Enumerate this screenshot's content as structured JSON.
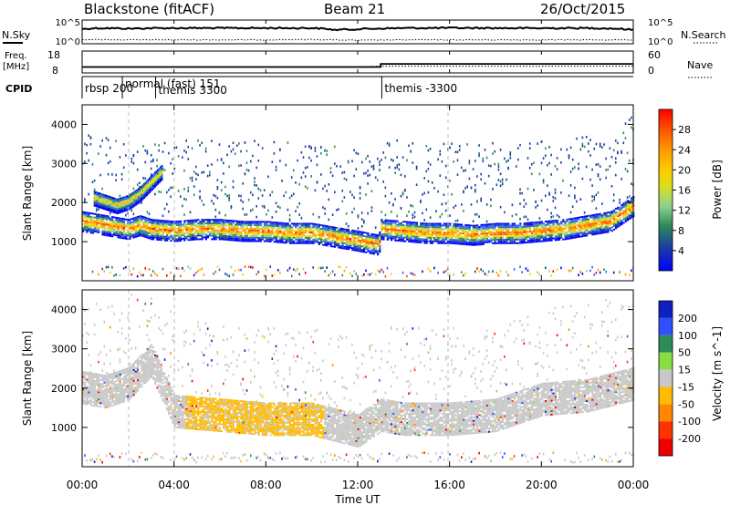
{
  "header": {
    "station": "Blackstone (fitACF)",
    "beam": "Beam 21",
    "date": "26/Oct/2015"
  },
  "labels": {
    "nsky": "N.Sky",
    "nsearch": "N.Search",
    "freq_line1": "Freq.",
    "freq_line2": "[MHz]",
    "nave": "Nave",
    "cpid": "CPID",
    "tick_nsky_top": "10^5",
    "tick_nsky_bottom": "10^0",
    "tick_freq_top": "18",
    "tick_freq_bottom": "8",
    "tick_nave_top": "60",
    "tick_nave_bottom": "0"
  },
  "cpid_segments": [
    {
      "start_h": 0.0,
      "label": "rbsp 200"
    },
    {
      "start_h": 1.75,
      "label": "normal (fast) 151"
    },
    {
      "start_h": 3.2,
      "label": "themis 3300"
    },
    {
      "start_h": 13.05,
      "label": "themis -3300"
    }
  ],
  "chart_data": [
    {
      "type": "line",
      "name": "noise",
      "xlabel": "",
      "ylabel": "",
      "xlim": [
        0,
        24
      ],
      "y_scale": "log",
      "ylim": [
        1,
        100000
      ],
      "series": [
        {
          "name": "N.Sky",
          "style": "solid",
          "x": [
            0,
            0.5,
            1,
            2,
            3,
            4,
            6,
            8,
            10,
            11,
            12,
            14,
            16,
            18,
            20,
            22,
            23,
            24
          ],
          "y": [
            5000,
            9000,
            10000,
            7000,
            9000,
            10000,
            10000,
            10000,
            10000,
            3000,
            5000,
            10000,
            11000,
            10000,
            9000,
            10000,
            8000,
            3000
          ]
        },
        {
          "name": "N.Search",
          "style": "dotted",
          "x": [
            0,
            2,
            4,
            6,
            8,
            10,
            12,
            14,
            16,
            18,
            20,
            22,
            24
          ],
          "y": [
            5,
            4,
            4,
            4,
            4,
            5,
            3,
            4,
            4,
            4,
            4,
            4,
            4
          ]
        }
      ]
    },
    {
      "type": "line",
      "name": "frequency-and-nave",
      "xlim": [
        0,
        24
      ],
      "ylim_left": [
        8,
        18
      ],
      "ylim_right": [
        0,
        60
      ],
      "series": [
        {
          "name": "Freq. [MHz]",
          "style": "solid",
          "axis": "left",
          "x": [
            0,
            13,
            13,
            24
          ],
          "y": [
            10.5,
            10.5,
            12.4,
            12.4
          ]
        },
        {
          "name": "Nave",
          "style": "dotted",
          "axis": "right",
          "x": [
            0,
            12,
            13,
            24
          ],
          "y": [
            15,
            15,
            18,
            18
          ]
        }
      ]
    },
    {
      "type": "heatmap",
      "name": "power",
      "xlabel": "",
      "ylabel": "Slant Range [km]",
      "xlim": [
        0,
        24
      ],
      "ylim": [
        0,
        4500
      ],
      "yticks": [
        1000,
        2000,
        3000,
        4000
      ],
      "colorbar": {
        "label": "Power [dB]",
        "min": 0,
        "max": 32,
        "ticks": [
          4,
          8,
          12,
          16,
          20,
          24,
          28
        ],
        "colors": [
          "#0000ff",
          "#1b3fa0",
          "#3460ff",
          "#2e8b57",
          "#8fd08f",
          "#d8e020",
          "#ffcc00",
          "#ff9900",
          "#ff5500",
          "#ff0000"
        ]
      },
      "features": [
        {
          "band": "main-echo",
          "x": [
            0,
            0.5,
            1,
            1.5,
            2,
            2.5,
            3,
            4,
            5,
            6,
            7,
            8,
            9,
            10,
            11,
            12,
            12.9,
            13,
            14,
            15,
            16,
            17,
            18,
            19,
            20,
            21,
            22,
            23,
            24
          ],
          "y": [
            1500,
            1450,
            1400,
            1350,
            1300,
            1400,
            1300,
            1250,
            1300,
            1300,
            1250,
            1250,
            1200,
            1200,
            1100,
            1000,
            900,
            1300,
            1250,
            1200,
            1200,
            1150,
            1200,
            1200,
            1250,
            1300,
            1400,
            1500,
            1900
          ]
        },
        {
          "band": "early-upper-arc",
          "x": [
            0.5,
            1,
            1.5,
            2,
            2.5,
            3,
            3.5
          ],
          "y": [
            2100,
            2000,
            1900,
            2000,
            2200,
            2500,
            2800
          ]
        },
        {
          "band": "ground-scatter",
          "x": [
            0,
            6,
            12,
            18,
            24
          ],
          "y": [
            200,
            200,
            200,
            200,
            200
          ]
        }
      ]
    },
    {
      "type": "heatmap",
      "name": "velocity",
      "xlabel": "Time UT",
      "ylabel": "Slant Range [km]",
      "xlim": [
        0,
        24
      ],
      "ylim": [
        0,
        4500
      ],
      "yticks": [
        1000,
        2000,
        3000,
        4000
      ],
      "xticks": [
        "00:00",
        "04:00",
        "08:00",
        "12:00",
        "16:00",
        "20:00",
        "00:00"
      ],
      "colorbar": {
        "label": "Velocity [m s^-1]",
        "ticks": [
          200,
          100,
          50,
          15,
          -15,
          -50,
          -100,
          -200
        ],
        "colors": [
          "#1020c0",
          "#3050ff",
          "#2e8b57",
          "#88dd44",
          "#c8c8c8",
          "#ffbb00",
          "#ff8800",
          "#ff3300",
          "#ee0000"
        ]
      },
      "features": [
        {
          "band": "ground-scatter-grey",
          "x": [
            0,
            1,
            2,
            3,
            4,
            6,
            8,
            10,
            12,
            13,
            14,
            16,
            18,
            20,
            22,
            24
          ],
          "y": [
            2000,
            1900,
            2100,
            2700,
            1400,
            1300,
            1200,
            1200,
            900,
            1300,
            1200,
            1200,
            1300,
            1700,
            1800,
            2100
          ]
        },
        {
          "band": "orange-negative-velocity",
          "x": [
            5,
            6,
            7,
            8,
            9,
            10
          ],
          "y": [
            1250,
            1300,
            1350,
            1300,
            1350,
            1300
          ]
        },
        {
          "band": "low-range-mixed",
          "x": [
            0,
            6,
            12,
            18,
            24
          ],
          "y": [
            250,
            250,
            250,
            250,
            250
          ]
        }
      ]
    }
  ],
  "colors": {
    "power_red": "#ff0000",
    "power_orange": "#ff9900",
    "power_yellow": "#ffcc00",
    "power_green": "#2e8b57",
    "power_blue": "#1b3fa0",
    "vel_grey": "#c8c8c8",
    "vel_orange": "#ffbb00",
    "vel_blue": "#1020c0"
  }
}
